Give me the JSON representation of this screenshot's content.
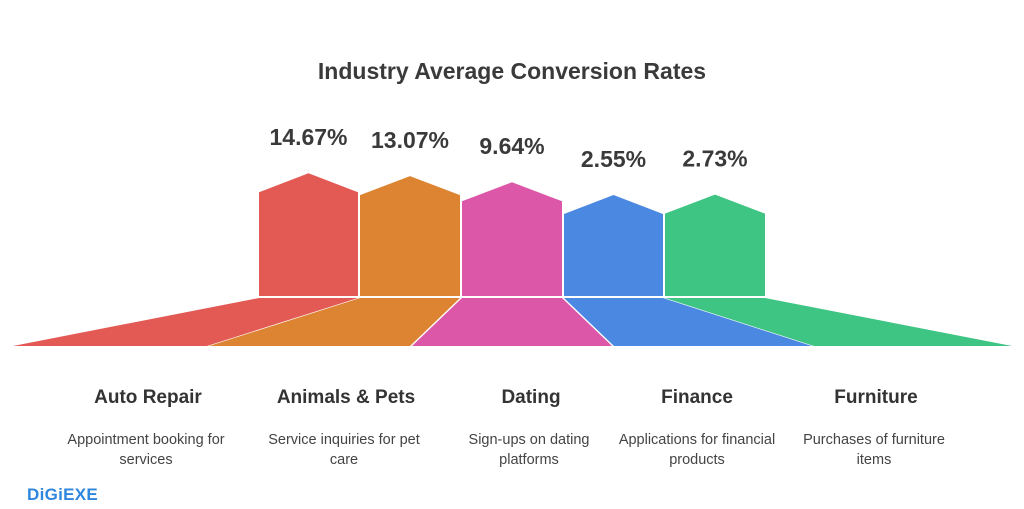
{
  "chart_data": {
    "type": "bar",
    "title": "Industry Average Conversion Rates",
    "categories": [
      "Auto Repair",
      "Animals & Pets",
      "Dating",
      "Finance",
      "Furniture"
    ],
    "values": [
      14.67,
      13.07,
      9.64,
      2.55,
      2.73
    ],
    "value_labels": [
      "14.67%",
      "13.07%",
      "9.64%",
      "2.55%",
      "2.73%"
    ],
    "descriptions": [
      "Appointment booking for services",
      "Service inquiries for pet care",
      "Sign-ups on dating platforms",
      "Applications for financial products",
      "Purchases of furniture items"
    ],
    "colors": [
      "#e35a55",
      "#dc8432",
      "#dc57a8",
      "#4b88e2",
      "#3ec583"
    ],
    "unit": "%"
  },
  "logo": "DiGiEXE"
}
